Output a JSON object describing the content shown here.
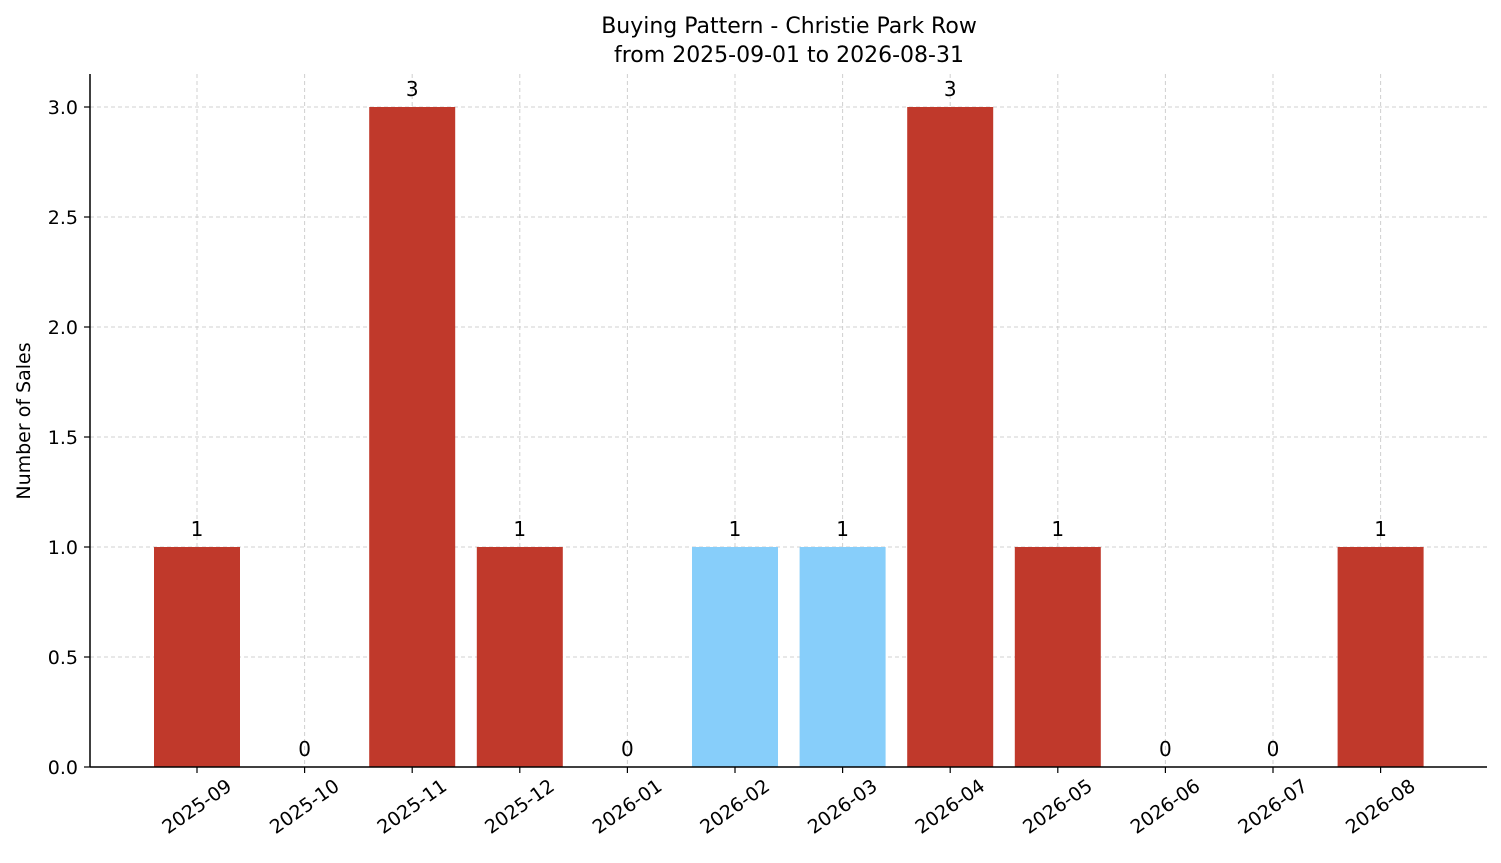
{
  "chart_data": {
    "type": "bar",
    "title": "Buying Pattern - Christie Park Row",
    "subtitle": "from 2025-09-01 to 2026-08-31",
    "xlabel": "",
    "ylabel": "Number of Sales",
    "ylim": [
      0,
      3.15
    ],
    "yticks": [
      "0.0",
      "0.5",
      "1.0",
      "1.5",
      "2.0",
      "2.5",
      "3.0"
    ],
    "ytick_values": [
      0,
      0.5,
      1.0,
      1.5,
      2.0,
      2.5,
      3.0
    ],
    "categories": [
      "2025-09",
      "2025-10",
      "2025-11",
      "2025-12",
      "2026-01",
      "2026-02",
      "2026-03",
      "2026-04",
      "2026-05",
      "2026-06",
      "2026-07",
      "2026-08"
    ],
    "values": [
      1,
      0,
      3,
      1,
      0,
      1,
      1,
      3,
      1,
      0,
      0,
      1
    ],
    "data_labels": [
      "1",
      "0",
      "3",
      "1",
      "0",
      "1",
      "1",
      "3",
      "1",
      "0",
      "0",
      "1"
    ],
    "bar_colors": [
      "#c0392b",
      "#c0392b",
      "#c0392b",
      "#c0392b",
      "#c0392b",
      "#87cefa",
      "#87cefa",
      "#c0392b",
      "#c0392b",
      "#c0392b",
      "#c0392b",
      "#c0392b"
    ],
    "grid": true,
    "legend": "none"
  }
}
